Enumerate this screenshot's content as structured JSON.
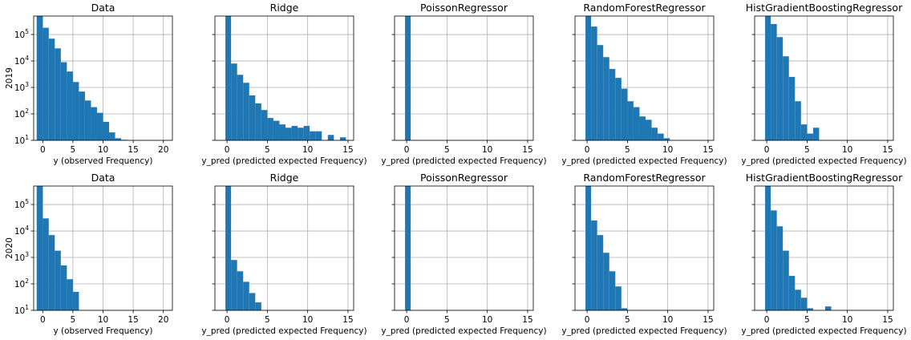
{
  "chart_data": [
    {
      "type": "bar",
      "title": "Data",
      "year": "2019",
      "xlabel": "y (observed Frequency)",
      "ylabel": "2019",
      "xlim": [
        -1.5,
        21.5
      ],
      "ylim": [
        10,
        500000
      ],
      "yscale": "log",
      "grid": true,
      "xticks": [
        "0",
        "5",
        "10",
        "15",
        "20"
      ],
      "bins": [
        {
          "x0": -1,
          "x1": 0,
          "v": 500000
        },
        {
          "x0": 0,
          "x1": 1,
          "v": 180000
        },
        {
          "x0": 1,
          "x1": 2,
          "v": 70000
        },
        {
          "x0": 2,
          "x1": 3,
          "v": 30000
        },
        {
          "x0": 3,
          "x1": 4,
          "v": 9000
        },
        {
          "x0": 4,
          "x1": 5,
          "v": 4000
        },
        {
          "x0": 5,
          "x1": 6,
          "v": 1600
        },
        {
          "x0": 6,
          "x1": 7,
          "v": 700
        },
        {
          "x0": 7,
          "x1": 8,
          "v": 320
        },
        {
          "x0": 8,
          "x1": 9,
          "v": 180
        },
        {
          "x0": 9,
          "x1": 10,
          "v": 110
        },
        {
          "x0": 10,
          "x1": 11,
          "v": 50
        },
        {
          "x0": 11,
          "x1": 12,
          "v": 20
        },
        {
          "x0": 12,
          "x1": 13,
          "v": 12
        },
        {
          "x0": 13,
          "x1": 14,
          "v": 10.5
        }
      ]
    },
    {
      "type": "bar",
      "title": "Ridge",
      "year": "2019",
      "xlabel": "y_pred (predicted expected Frequency)",
      "xlim": [
        -1.5,
        15.7
      ],
      "ylim": [
        10,
        500000
      ],
      "yscale": "log",
      "grid": true,
      "xticks": [
        "0",
        "5",
        "10",
        "15"
      ],
      "bins": [
        {
          "x0": -0.2,
          "x1": 0.5,
          "v": 500000
        },
        {
          "x0": 0.5,
          "x1": 1.25,
          "v": 8000
        },
        {
          "x0": 1.25,
          "x1": 2,
          "v": 3000
        },
        {
          "x0": 2,
          "x1": 2.75,
          "v": 1500
        },
        {
          "x0": 2.75,
          "x1": 3.5,
          "v": 500
        },
        {
          "x0": 3.5,
          "x1": 4.25,
          "v": 250
        },
        {
          "x0": 4.25,
          "x1": 5,
          "v": 140
        },
        {
          "x0": 5,
          "x1": 5.75,
          "v": 70
        },
        {
          "x0": 5.75,
          "x1": 6.5,
          "v": 55
        },
        {
          "x0": 6.5,
          "x1": 7.25,
          "v": 40
        },
        {
          "x0": 7.25,
          "x1": 8,
          "v": 30
        },
        {
          "x0": 8,
          "x1": 8.75,
          "v": 35
        },
        {
          "x0": 8.75,
          "x1": 9.5,
          "v": 30
        },
        {
          "x0": 9.5,
          "x1": 10.25,
          "v": 35
        },
        {
          "x0": 10.25,
          "x1": 11,
          "v": 22
        },
        {
          "x0": 11,
          "x1": 11.75,
          "v": 22
        },
        {
          "x0": 11.75,
          "x1": 12.5,
          "v": 10
        },
        {
          "x0": 12.5,
          "x1": 13.25,
          "v": 16
        },
        {
          "x0": 13.25,
          "x1": 14,
          "v": 10
        },
        {
          "x0": 14,
          "x1": 14.75,
          "v": 13
        }
      ]
    },
    {
      "type": "bar",
      "title": "PoissonRegressor",
      "year": "2019",
      "xlabel": "y_pred (predicted expected Frequency)",
      "xlim": [
        -1.5,
        15.7
      ],
      "ylim": [
        10,
        500000
      ],
      "yscale": "log",
      "grid": true,
      "xticks": [
        "0",
        "5",
        "10",
        "15"
      ],
      "bins": [
        {
          "x0": -0.2,
          "x1": 0.5,
          "v": 500000
        }
      ]
    },
    {
      "type": "bar",
      "title": "RandomForestRegressor",
      "year": "2019",
      "xlabel": "y_pred (predicted expected Frequency)",
      "xlim": [
        -1.5,
        15.7
      ],
      "ylim": [
        10,
        500000
      ],
      "yscale": "log",
      "grid": true,
      "xticks": [
        "0",
        "5",
        "10",
        "15"
      ],
      "bins": [
        {
          "x0": -0.2,
          "x1": 0.5,
          "v": 500000
        },
        {
          "x0": 0.5,
          "x1": 1.25,
          "v": 200000
        },
        {
          "x0": 1.25,
          "x1": 2,
          "v": 40000
        },
        {
          "x0": 2,
          "x1": 2.75,
          "v": 14000
        },
        {
          "x0": 2.75,
          "x1": 3.5,
          "v": 5000
        },
        {
          "x0": 3.5,
          "x1": 4.25,
          "v": 2300
        },
        {
          "x0": 4.25,
          "x1": 5,
          "v": 900
        },
        {
          "x0": 5,
          "x1": 5.75,
          "v": 300
        },
        {
          "x0": 5.75,
          "x1": 6.5,
          "v": 180
        },
        {
          "x0": 6.5,
          "x1": 7.25,
          "v": 80
        },
        {
          "x0": 7.25,
          "x1": 8,
          "v": 60
        },
        {
          "x0": 8,
          "x1": 8.75,
          "v": 30
        },
        {
          "x0": 8.75,
          "x1": 9.5,
          "v": 18
        },
        {
          "x0": 9.5,
          "x1": 10.25,
          "v": 12
        }
      ]
    },
    {
      "type": "bar",
      "title": "HistGradientBoostingRegressor",
      "year": "2019",
      "xlabel": "y_pred (predicted expected Frequency)",
      "xlim": [
        -1.5,
        15.7
      ],
      "ylim": [
        10,
        500000
      ],
      "yscale": "log",
      "grid": true,
      "xticks": [
        "0",
        "5",
        "10",
        "15"
      ],
      "bins": [
        {
          "x0": -0.2,
          "x1": 0.5,
          "v": 500000
        },
        {
          "x0": 0.5,
          "x1": 1.25,
          "v": 250000
        },
        {
          "x0": 1.25,
          "x1": 2,
          "v": 80000
        },
        {
          "x0": 2,
          "x1": 2.75,
          "v": 15000
        },
        {
          "x0": 2.75,
          "x1": 3.5,
          "v": 2500
        },
        {
          "x0": 3.5,
          "x1": 4.25,
          "v": 300
        },
        {
          "x0": 4.25,
          "x1": 5,
          "v": 40
        },
        {
          "x0": 5,
          "x1": 5.75,
          "v": 18
        },
        {
          "x0": 5.75,
          "x1": 6.5,
          "v": 30
        }
      ]
    },
    {
      "type": "bar",
      "title": "Data",
      "year": "2020",
      "xlabel": "y (observed Frequency)",
      "ylabel": "2020",
      "xlim": [
        -1.5,
        21.5
      ],
      "ylim": [
        10,
        500000
      ],
      "yscale": "log",
      "grid": true,
      "xticks": [
        "0",
        "5",
        "10",
        "15",
        "20"
      ],
      "bins": [
        {
          "x0": -1,
          "x1": 0,
          "v": 500000
        },
        {
          "x0": 0,
          "x1": 1,
          "v": 30000
        },
        {
          "x0": 1,
          "x1": 2,
          "v": 7000
        },
        {
          "x0": 2,
          "x1": 3,
          "v": 1800
        },
        {
          "x0": 3,
          "x1": 4,
          "v": 500
        },
        {
          "x0": 4,
          "x1": 5,
          "v": 150
        },
        {
          "x0": 5,
          "x1": 6,
          "v": 50
        }
      ]
    },
    {
      "type": "bar",
      "title": "Ridge",
      "year": "2020",
      "xlabel": "y_pred (predicted expected Frequency)",
      "xlim": [
        -1.5,
        15.7
      ],
      "ylim": [
        10,
        500000
      ],
      "yscale": "log",
      "grid": true,
      "xticks": [
        "0",
        "5",
        "10",
        "15"
      ],
      "bins": [
        {
          "x0": -0.2,
          "x1": 0.5,
          "v": 500000
        },
        {
          "x0": 0.5,
          "x1": 1.25,
          "v": 800
        },
        {
          "x0": 1.25,
          "x1": 2,
          "v": 300
        },
        {
          "x0": 2,
          "x1": 2.75,
          "v": 120
        },
        {
          "x0": 2.75,
          "x1": 3.5,
          "v": 45
        },
        {
          "x0": 3.5,
          "x1": 4.25,
          "v": 20
        }
      ]
    },
    {
      "type": "bar",
      "title": "PoissonRegressor",
      "year": "2020",
      "xlabel": "y_pred (predicted expected Frequency)",
      "xlim": [
        -1.5,
        15.7
      ],
      "ylim": [
        10,
        500000
      ],
      "yscale": "log",
      "grid": true,
      "xticks": [
        "0",
        "5",
        "10",
        "15"
      ],
      "bins": [
        {
          "x0": -0.2,
          "x1": 0.5,
          "v": 500000
        }
      ]
    },
    {
      "type": "bar",
      "title": "RandomForestRegressor",
      "year": "2020",
      "xlabel": "y_pred (predicted expected Frequency)",
      "xlim": [
        -1.5,
        15.7
      ],
      "ylim": [
        10,
        500000
      ],
      "yscale": "log",
      "grid": true,
      "xticks": [
        "0",
        "5",
        "10",
        "15"
      ],
      "bins": [
        {
          "x0": -0.2,
          "x1": 0.5,
          "v": 500000
        },
        {
          "x0": 0.5,
          "x1": 1.25,
          "v": 25000
        },
        {
          "x0": 1.25,
          "x1": 2,
          "v": 7000
        },
        {
          "x0": 2,
          "x1": 2.75,
          "v": 1500
        },
        {
          "x0": 2.75,
          "x1": 3.5,
          "v": 300
        },
        {
          "x0": 3.5,
          "x1": 4.25,
          "v": 80
        },
        {
          "x0": 4.25,
          "x1": 5,
          "v": 12
        }
      ]
    },
    {
      "type": "bar",
      "title": "HistGradientBoostingRegressor",
      "year": "2020",
      "xlabel": "y_pred (predicted expected Frequency)",
      "xlim": [
        -1.5,
        15.7
      ],
      "ylim": [
        10,
        500000
      ],
      "yscale": "log",
      "grid": true,
      "xticks": [
        "0",
        "5",
        "10",
        "15"
      ],
      "bins": [
        {
          "x0": -0.2,
          "x1": 0.5,
          "v": 500000
        },
        {
          "x0": 0.5,
          "x1": 1.25,
          "v": 60000
        },
        {
          "x0": 1.25,
          "x1": 2,
          "v": 15000
        },
        {
          "x0": 2,
          "x1": 2.75,
          "v": 1800
        },
        {
          "x0": 2.75,
          "x1": 3.5,
          "v": 200
        },
        {
          "x0": 3.5,
          "x1": 4.25,
          "v": 60
        },
        {
          "x0": 4.25,
          "x1": 5,
          "v": 30
        },
        {
          "x0": 5,
          "x1": 5.75,
          "v": 12
        },
        {
          "x0": 7.25,
          "x1": 8,
          "v": 14
        }
      ]
    }
  ],
  "colors": {
    "bar": "#1f77b4",
    "grid": "#b0b0b0",
    "axis": "#000000"
  }
}
